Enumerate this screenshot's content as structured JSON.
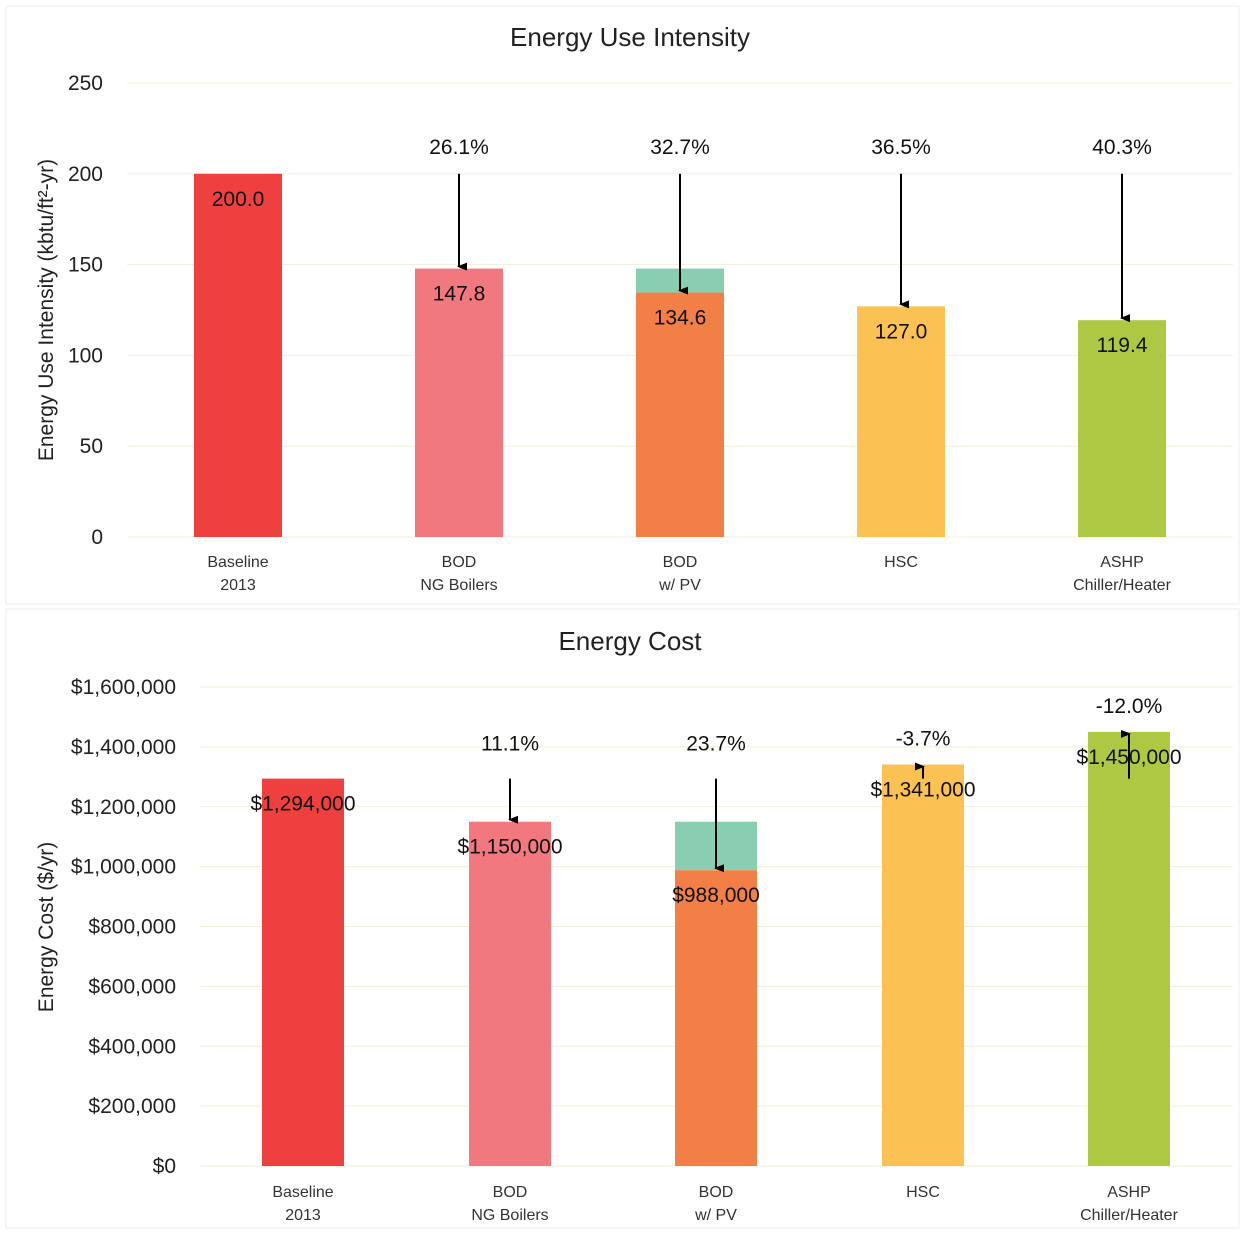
{
  "chart_data": [
    {
      "type": "bar",
      "title": "Energy Use Intensity",
      "ylabel": "Energy Use Intensity (kbtu/ft²-yr)",
      "ylim": [
        0,
        250
      ],
      "yticks": [
        0,
        50,
        100,
        150,
        200,
        250
      ],
      "ytick_labels": [
        "0",
        "50",
        "100",
        "150",
        "200",
        "250"
      ],
      "categories": [
        [
          "Baseline",
          "2013"
        ],
        [
          "BOD",
          "NG Boilers"
        ],
        [
          "BOD",
          "w/ PV"
        ],
        [
          "HSC",
          ""
        ],
        [
          "ASHP",
          "Chiller/Heater"
        ]
      ],
      "values": [
        200.0,
        147.8,
        134.6,
        127.0,
        119.4
      ],
      "value_labels": [
        "200.0",
        "147.8",
        "134.6",
        "127.0",
        "119.4"
      ],
      "pv_offset": [
        0,
        0,
        13.2,
        0,
        0
      ],
      "colors": [
        "#ef4040",
        "#f2787f",
        "#f27f45",
        "#fbc253",
        "#adc944"
      ],
      "pv_color": "#88ceb0",
      "change_labels": [
        "",
        "26.1%",
        "32.7%",
        "36.5%",
        "40.3%"
      ],
      "arrow_from": 200,
      "grid": true
    },
    {
      "type": "bar",
      "title": "Energy Cost",
      "ylabel": "Energy Cost ($/yr)",
      "ylim": [
        0,
        1600000
      ],
      "yticks": [
        0,
        200000,
        400000,
        600000,
        800000,
        1000000,
        1200000,
        1400000,
        1600000
      ],
      "ytick_labels": [
        "$0",
        "$200,000",
        "$400,000",
        "$600,000",
        "$800,000",
        "$1,000,000",
        "$1,200,000",
        "$1,400,000",
        "$1,600,000"
      ],
      "categories": [
        [
          "Baseline",
          "2013"
        ],
        [
          "BOD",
          "NG Boilers"
        ],
        [
          "BOD",
          "w/ PV"
        ],
        [
          "HSC",
          ""
        ],
        [
          "ASHP",
          "Chiller/Heater"
        ]
      ],
      "values": [
        1294000,
        1150000,
        988000,
        1341000,
        1450000
      ],
      "value_labels": [
        "$1,294,000",
        "$1,150,000",
        "$988,000",
        "$1,341,000",
        "$1,450,000"
      ],
      "pv_offset": [
        0,
        0,
        162000,
        0,
        0
      ],
      "colors": [
        "#ef4040",
        "#f2787f",
        "#f27f45",
        "#fbc253",
        "#adc944"
      ],
      "pv_color": "#88ceb0",
      "change_labels": [
        "",
        "11.1%",
        "23.7%",
        "-3.7%",
        "-12.0%"
      ],
      "arrow_from": 1294000,
      "grid": true
    }
  ]
}
